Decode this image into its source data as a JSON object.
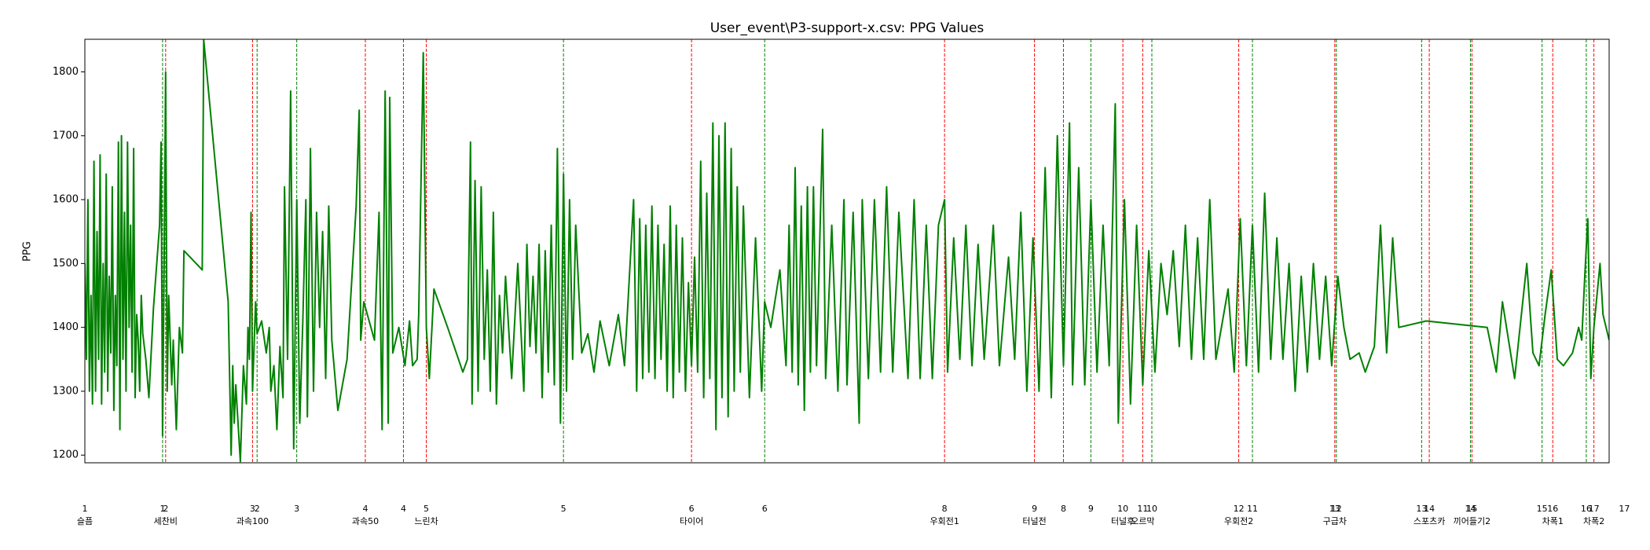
{
  "chart_data": {
    "type": "line",
    "title": "User_event\\P3-support-x.csv: PPG Values",
    "y_label": "PPG",
    "xlim": [
      0,
      1000
    ],
    "ylim": [
      1188,
      1851
    ],
    "yticks": [
      1200,
      1300,
      1400,
      1500,
      1600,
      1700,
      1800
    ],
    "series": [
      {
        "color": "green",
        "x": [
          0,
          1,
          2,
          3,
          4,
          5,
          6,
          7,
          8,
          9,
          10,
          11,
          12,
          13,
          14,
          15,
          16,
          17,
          18,
          19,
          20,
          21,
          22,
          23,
          24,
          25,
          26,
          27,
          28,
          29,
          30,
          31,
          32,
          33,
          34,
          35,
          36,
          37,
          38,
          40,
          42,
          45,
          49,
          50,
          51,
          52,
          53,
          54,
          55,
          57,
          58,
          60,
          62,
          64,
          65,
          77,
          78,
          94,
          96,
          97,
          98,
          99,
          100,
          102,
          104,
          106,
          107,
          108,
          109,
          110,
          112,
          113,
          116,
          119,
          121,
          122,
          124,
          126,
          128,
          130,
          131,
          133,
          135,
          137,
          139,
          141,
          143,
          145,
          146,
          148,
          150,
          152,
          154,
          156,
          158,
          160,
          162,
          166,
          172,
          178,
          180,
          181,
          183,
          190,
          193,
          195,
          197,
          199,
          200,
          202,
          204,
          206,
          208,
          210,
          213,
          215,
          218,
          219,
          222,
          224,
          226,
          229,
          238,
          248,
          251,
          253,
          254,
          256,
          258,
          260,
          262,
          264,
          266,
          268,
          270,
          272,
          274,
          276,
          280,
          284,
          288,
          290,
          292,
          294,
          296,
          298,
          300,
          302,
          304,
          306,
          308,
          310,
          312,
          314,
          316,
          318,
          320,
          322,
          326,
          330,
          334,
          338,
          344,
          350,
          354,
          360,
          362,
          364,
          366,
          368,
          370,
          372,
          374,
          376,
          378,
          380,
          382,
          384,
          386,
          388,
          390,
          392,
          394,
          396,
          398,
          400,
          402,
          404,
          406,
          408,
          410,
          412,
          414,
          416,
          418,
          420,
          422,
          424,
          426,
          428,
          430,
          432,
          436,
          440,
          444,
          446,
          450,
          456,
          460,
          462,
          464,
          466,
          468,
          470,
          472,
          474,
          476,
          478,
          480,
          484,
          486,
          490,
          494,
          498,
          500,
          504,
          508,
          510,
          514,
          518,
          522,
          526,
          530,
          534,
          540,
          544,
          548,
          552,
          556,
          560,
          564,
          566,
          570,
          574,
          578,
          582,
          586,
          590,
          596,
          600,
          606,
          610,
          614,
          618,
          622,
          626,
          630,
          634,
          638,
          642,
          646,
          648,
          652,
          656,
          660,
          664,
          668,
          672,
          676,
          678,
          682,
          686,
          690,
          694,
          698,
          702,
          706,
          710,
          714,
          718,
          722,
          726,
          730,
          734,
          738,
          742,
          750,
          754,
          758,
          762,
          766,
          770,
          774,
          778,
          782,
          786,
          790,
          794,
          798,
          802,
          806,
          810,
          814,
          818,
          822,
          826,
          830,
          836,
          840,
          846,
          850,
          854,
          858,
          862,
          880,
          920,
          926,
          930,
          938,
          946,
          950,
          954,
          958,
          962,
          966,
          970,
          976,
          980,
          982,
          984,
          986,
          988,
          990,
          994,
          996,
          1000
        ],
        "values": [
          1500,
          1350,
          1600,
          1300,
          1450,
          1280,
          1660,
          1300,
          1550,
          1350,
          1670,
          1280,
          1500,
          1330,
          1640,
          1300,
          1480,
          1360,
          1620,
          1270,
          1450,
          1340,
          1690,
          1240,
          1700,
          1350,
          1580,
          1300,
          1690,
          1400,
          1560,
          1330,
          1680,
          1290,
          1420,
          1380,
          1300,
          1450,
          1390,
          1350,
          1290,
          1430,
          1560,
          1690,
          1230,
          1500,
          1800,
          1300,
          1450,
          1310,
          1380,
          1240,
          1400,
          1360,
          1520,
          1490,
          1850,
          1440,
          1200,
          1340,
          1250,
          1310,
          1270,
          1190,
          1340,
          1280,
          1400,
          1350,
          1580,
          1300,
          1440,
          1390,
          1410,
          1360,
          1400,
          1300,
          1340,
          1240,
          1370,
          1290,
          1620,
          1350,
          1770,
          1210,
          1600,
          1250,
          1410,
          1600,
          1260,
          1680,
          1300,
          1580,
          1400,
          1550,
          1320,
          1590,
          1380,
          1270,
          1350,
          1590,
          1740,
          1380,
          1440,
          1380,
          1580,
          1240,
          1770,
          1250,
          1760,
          1360,
          1380,
          1400,
          1370,
          1340,
          1410,
          1340,
          1350,
          1420,
          1830,
          1400,
          1320,
          1460,
          1400,
          1330,
          1350,
          1690,
          1280,
          1630,
          1300,
          1620,
          1350,
          1490,
          1300,
          1580,
          1280,
          1450,
          1360,
          1480,
          1320,
          1500,
          1300,
          1530,
          1370,
          1480,
          1360,
          1530,
          1290,
          1520,
          1330,
          1560,
          1310,
          1680,
          1250,
          1640,
          1300,
          1600,
          1350,
          1560,
          1360,
          1390,
          1330,
          1410,
          1340,
          1420,
          1340,
          1600,
          1300,
          1570,
          1320,
          1560,
          1330,
          1590,
          1320,
          1560,
          1350,
          1530,
          1300,
          1590,
          1290,
          1560,
          1330,
          1540,
          1300,
          1470,
          1340,
          1510,
          1330,
          1660,
          1290,
          1610,
          1320,
          1720,
          1240,
          1700,
          1290,
          1720,
          1260,
          1680,
          1300,
          1620,
          1330,
          1590,
          1290,
          1540,
          1300,
          1440,
          1400,
          1490,
          1340,
          1560,
          1330,
          1650,
          1310,
          1590,
          1270,
          1620,
          1330,
          1620,
          1340,
          1710,
          1320,
          1560,
          1300,
          1600,
          1310,
          1580,
          1250,
          1600,
          1320,
          1600,
          1330,
          1620,
          1330,
          1580,
          1320,
          1600,
          1320,
          1560,
          1320,
          1560,
          1600,
          1330,
          1540,
          1350,
          1560,
          1340,
          1530,
          1350,
          1560,
          1340,
          1510,
          1350,
          1580,
          1300,
          1540,
          1300,
          1650,
          1290,
          1700,
          1340,
          1720,
          1310,
          1650,
          1310,
          1600,
          1330,
          1560,
          1340,
          1750,
          1250,
          1600,
          1280,
          1560,
          1310,
          1520,
          1330,
          1500,
          1420,
          1520,
          1370,
          1560,
          1350,
          1540,
          1350,
          1600,
          1350,
          1460,
          1330,
          1570,
          1340,
          1560,
          1330,
          1610,
          1350,
          1540,
          1350,
          1500,
          1300,
          1480,
          1330,
          1500,
          1350,
          1480,
          1340,
          1480,
          1400,
          1350,
          1360,
          1330,
          1370,
          1560,
          1360,
          1540,
          1400,
          1410,
          1400,
          1330,
          1440,
          1320,
          1500,
          1360,
          1340,
          1420,
          1490,
          1350,
          1340,
          1360,
          1400,
          1380,
          1480,
          1570,
          1320,
          1400,
          1500,
          1420,
          1380
        ]
      }
    ],
    "event_markers": [
      {
        "color": "red",
        "events": [
          {
            "label": "1",
            "name": "슬픔",
            "x": 0
          },
          {
            "label": "2",
            "name": "세찬비",
            "x": 53
          },
          {
            "label": "3",
            "name": "과속100",
            "x": 110
          },
          {
            "label": "4",
            "name": "과속50",
            "x": 184
          },
          {
            "label": "5",
            "name": "느린차",
            "x": 224
          },
          {
            "label": "6",
            "name": "타이어",
            "x": 398
          },
          {
            "label": "8",
            "name": "우회전1",
            "x": 564
          },
          {
            "label": "9",
            "name": "터널전",
            "x": 623
          },
          {
            "label": "10",
            "name": "터널후",
            "x": 681
          },
          {
            "label": "11",
            "name": "오르막",
            "x": 694
          },
          {
            "label": "12",
            "name": "우회전2",
            "x": 757
          },
          {
            "label": "13",
            "name": "구급차",
            "x": 820
          },
          {
            "label": "14",
            "name": "스포츠카",
            "x": 882
          },
          {
            "label": "15",
            "name": "끼어들기2",
            "x": 910
          },
          {
            "label": "16",
            "name": "차폭1",
            "x": 963
          },
          {
            "label": "17",
            "name": "차폭2",
            "x": 990
          }
        ]
      },
      {
        "color": "green",
        "events": [
          {
            "label": "1",
            "x": 51
          },
          {
            "label": "2",
            "x": 113
          },
          {
            "label": "3",
            "x": 139
          },
          {
            "label": "4",
            "x": 209
          },
          {
            "label": "5",
            "x": 314
          },
          {
            "label": "6",
            "x": 446
          },
          {
            "label": "8",
            "x": 642
          },
          {
            "label": "9",
            "x": 660
          },
          {
            "label": "10",
            "x": 700
          },
          {
            "label": "11",
            "x": 766
          },
          {
            "label": "12",
            "x": 821
          },
          {
            "label": "13",
            "x": 877
          },
          {
            "label": "14",
            "x": 909
          },
          {
            "label": "15",
            "x": 956
          },
          {
            "label": "16",
            "x": 985
          },
          {
            "label": "17",
            "x": 1010
          }
        ]
      }
    ]
  }
}
